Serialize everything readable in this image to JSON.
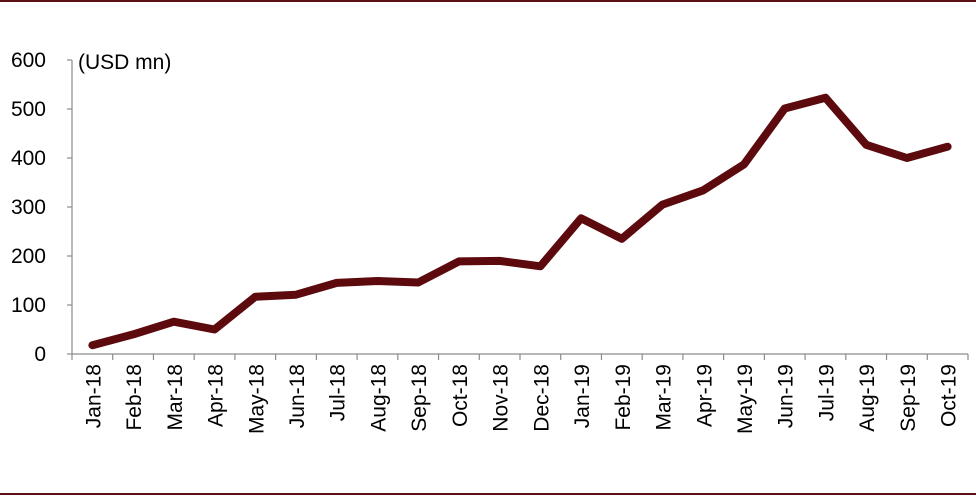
{
  "colors": {
    "rule": "#5c1016",
    "line": "#5c0a0d",
    "axis": "#8c8c8c",
    "text": "#000000"
  },
  "chart_data": {
    "type": "line",
    "title": "",
    "xlabel": "",
    "ylabel": "(USD mn)",
    "ylim": [
      0,
      600
    ],
    "yticks": [
      0,
      100,
      200,
      300,
      400,
      500,
      600
    ],
    "grid": false,
    "legend": "none",
    "categories": [
      "Jan-18",
      "Feb-18",
      "Mar-18",
      "Apr-18",
      "May-18",
      "Jun-18",
      "Jul-18",
      "Aug-18",
      "Sep-18",
      "Oct-18",
      "Nov-18",
      "Dec-18",
      "Jan-19",
      "Feb-19",
      "Mar-19",
      "Apr-19",
      "May-19",
      "Jun-19",
      "Jul-19",
      "Aug-19",
      "Sep-19",
      "Oct-19"
    ],
    "series": [
      {
        "values": [
          18,
          40,
          66,
          50,
          117,
          121,
          145,
          149,
          146,
          189,
          190,
          179,
          277,
          235,
          305,
          334,
          387,
          501,
          523,
          427,
          400,
          423
        ]
      }
    ]
  }
}
